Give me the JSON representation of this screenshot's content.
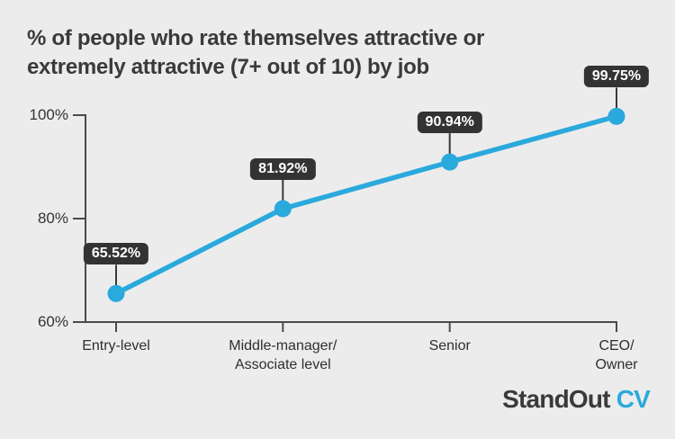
{
  "header": {
    "title_lines": [
      "% of people who rate themselves attractive or",
      "extremely attractive (7+ out of 10) by job"
    ]
  },
  "chart_data": {
    "type": "line",
    "title": "% of people who rate themselves attractive or extremely attractive (7+ out of 10) by job",
    "categories": [
      "Entry-level",
      "Middle-manager/\nAssociate level",
      "Senior",
      "CEO/\nOwner"
    ],
    "values": [
      65.52,
      81.92,
      90.94,
      99.75
    ],
    "point_labels": [
      "65.52%",
      "81.92%",
      "90.94%",
      "99.75%"
    ],
    "xlabel": "",
    "ylabel": "",
    "ylim": [
      60,
      100
    ],
    "y_ticks": [
      {
        "value": 100,
        "label": "100%"
      },
      {
        "value": 80,
        "label": "80%"
      },
      {
        "value": 60,
        "label": "60%"
      }
    ],
    "grid": false,
    "legend": "none",
    "colors": {
      "line": "#2AA9DC",
      "point": "#2AA9DC",
      "label_bg": "#333333",
      "label_text": "#FFFFFF",
      "leader": "#3A3A3A",
      "axis": "#4A4A4A",
      "text": "#3A3A3A",
      "background": "#ECECEC"
    }
  },
  "footer": {
    "logo": {
      "text_dark": "StandOut",
      "text_accent": "CV",
      "accent_color": "#2AA9DC"
    }
  }
}
